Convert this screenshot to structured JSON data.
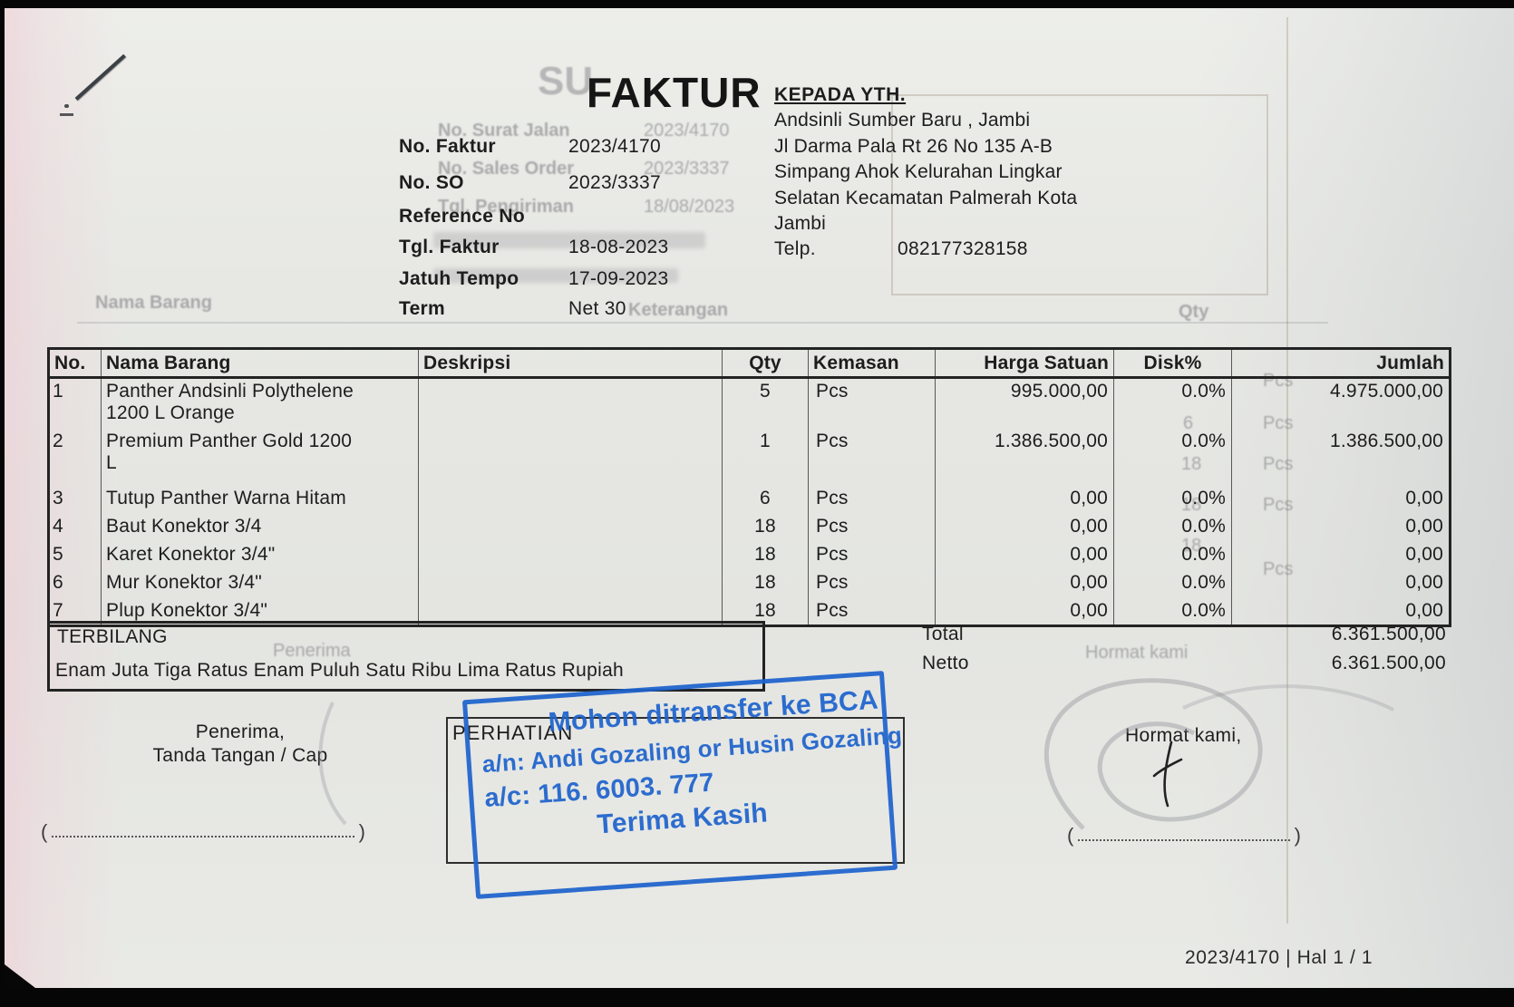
{
  "header": {
    "title": "FAKTUR",
    "kepada_label": "KEPADA YTH.",
    "recipient_lines": [
      "Andsinli Sumber Baru , Jambi",
      "Jl Darma Pala Rt 26 No 135 A-B",
      "Simpang Ahok Kelurahan Lingkar",
      "Selatan Kecamatan Palmerah Kota",
      "Jambi"
    ],
    "telp_label": "Telp.",
    "telp_value": "082177328158",
    "fields": [
      {
        "label": "No. Faktur",
        "value": "2023/4170"
      },
      {
        "label": "No. SO",
        "value": "2023/3337"
      },
      {
        "label": "Reference No",
        "value": ""
      },
      {
        "label": "Tgl. Faktur",
        "value": "18-08-2023"
      },
      {
        "label": "Jatuh Tempo",
        "value": "17-09-2023"
      },
      {
        "label": "Term",
        "value": "Net 30"
      }
    ]
  },
  "table": {
    "columns": [
      "No.",
      "Nama Barang",
      "Deskripsi",
      "Qty",
      "Kemasan",
      "Harga Satuan",
      "Disk%",
      "Jumlah"
    ],
    "rows": [
      {
        "no": "1",
        "nama": "Panther Andsinli Polythelene\n1200 L Orange",
        "deskripsi": "",
        "qty": "5",
        "kemasan": "Pcs",
        "harga": "995.000,00",
        "disk": "0.0%",
        "jumlah": "4.975.000,00"
      },
      {
        "no": "2",
        "nama": "Premium Panther Gold 1200\nL",
        "deskripsi": "",
        "qty": "1",
        "kemasan": "Pcs",
        "harga": "1.386.500,00",
        "disk": "0.0%",
        "jumlah": "1.386.500,00"
      },
      {
        "no": "3",
        "nama": "Tutup Panther Warna Hitam",
        "deskripsi": "",
        "qty": "6",
        "kemasan": "Pcs",
        "harga": "0,00",
        "disk": "0.0%",
        "jumlah": "0,00"
      },
      {
        "no": "4",
        "nama": "Baut Konektor 3/4",
        "deskripsi": "",
        "qty": "18",
        "kemasan": "Pcs",
        "harga": "0,00",
        "disk": "0.0%",
        "jumlah": "0,00"
      },
      {
        "no": "5",
        "nama": "Karet Konektor 3/4\"",
        "deskripsi": "",
        "qty": "18",
        "kemasan": "Pcs",
        "harga": "0,00",
        "disk": "0.0%",
        "jumlah": "0,00"
      },
      {
        "no": "6",
        "nama": "Mur Konektor 3/4\"",
        "deskripsi": "",
        "qty": "18",
        "kemasan": "Pcs",
        "harga": "0,00",
        "disk": "0.0%",
        "jumlah": "0,00"
      },
      {
        "no": "7",
        "nama": "Plup Konektor 3/4\"",
        "deskripsi": "",
        "qty": "18",
        "kemasan": "Pcs",
        "harga": "0,00",
        "disk": "0.0%",
        "jumlah": "0,00"
      }
    ]
  },
  "totals": {
    "total_label": "Total",
    "total_value": "6.361.500,00",
    "netto_label": "Netto",
    "netto_value": "6.361.500,00"
  },
  "terbilang": {
    "label": "TERBILANG",
    "text": "Enam Juta Tiga Ratus Enam Puluh Satu Ribu Lima Ratus Rupiah"
  },
  "signatures": {
    "penerima_line1": "Penerima,",
    "penerima_line2": "Tanda Tangan / Cap",
    "hormat": "Hormat kami,"
  },
  "stamp": {
    "perhatian_label": "PERHATIAN",
    "lines": [
      "Mohon ditransfer ke BCA",
      "a/n: Andi Gozaling or Husin Gozaling",
      "a/c: 116. 6003. 777",
      "Terima Kasih"
    ],
    "color": "#1e63cd"
  },
  "footer": {
    "page_info": "2023/4170 | Hal 1 / 1"
  },
  "ghost": {
    "title_fragment": "SU",
    "fields": [
      {
        "label": "No. Surat Jalan",
        "value": "2023/4170"
      },
      {
        "label": "No. Sales Order",
        "value": "2023/3337"
      },
      {
        "label": "Tgl. Pengiriman",
        "value": "18/08/2023"
      }
    ],
    "table_headers": [
      "Nama Barang",
      "Keterangan",
      "Qty"
    ],
    "qty_values": [
      "6",
      "18",
      "18",
      "18"
    ],
    "pcs_label": "Pcs",
    "penerima": "Penerima",
    "hormat": "Hormat kami"
  }
}
